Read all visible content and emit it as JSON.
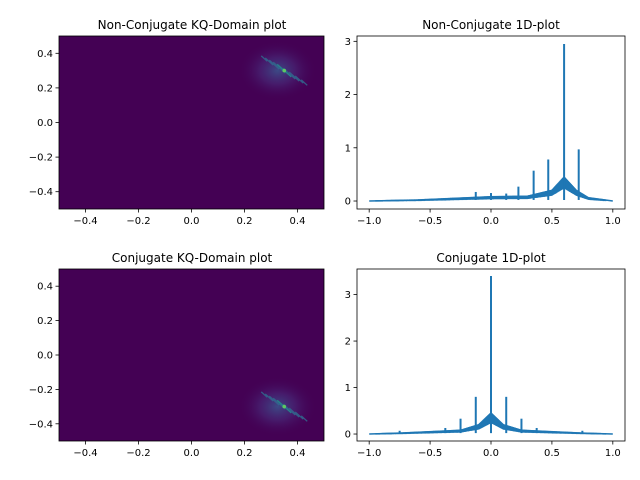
{
  "figure": {
    "background": "#ffffff"
  },
  "chart_data": [
    {
      "id": "nc-kq",
      "type": "heatmap",
      "title": "Non-Conjugate KQ-Domain plot",
      "xlim": [
        -0.5,
        0.5
      ],
      "ylim": [
        -0.5,
        0.5
      ],
      "xticks": [
        -0.4,
        -0.2,
        0.0,
        0.2,
        0.4
      ],
      "yticks": [
        -0.4,
        -0.2,
        0.0,
        0.2,
        0.4
      ],
      "xtick_labels": [
        "−0.4",
        "−0.2",
        "0.0",
        "0.2",
        "0.4"
      ],
      "ytick_labels": [
        "−0.4",
        "−0.2",
        "0.0",
        "0.2",
        "0.4"
      ],
      "colormap": "viridis",
      "background_color": "#440154",
      "hotspot": {
        "x_range": [
          0.2,
          0.45
        ],
        "y_range": [
          0.15,
          0.45
        ],
        "peak": [
          0.35,
          0.3
        ]
      },
      "grid": false
    },
    {
      "id": "nc-1d",
      "type": "line",
      "title": "Non-Conjugate 1D-plot",
      "xlim": [
        -1.1,
        1.1
      ],
      "ylim": [
        -0.15,
        3.1
      ],
      "xticks": [
        -1.0,
        -0.5,
        0.0,
        0.5,
        1.0
      ],
      "yticks": [
        0,
        1,
        2,
        3
      ],
      "xtick_labels": [
        "−1.0",
        "−0.5",
        "0.0",
        "0.5",
        "1.0"
      ],
      "ytick_labels": [
        "0",
        "1",
        "2",
        "3"
      ],
      "color": "#1f77b4",
      "baseline": {
        "x": [
          -1.0,
          -0.6,
          -0.3,
          0.0,
          0.3,
          0.5,
          0.6,
          0.7,
          0.8,
          1.0
        ],
        "y": [
          0.0,
          0.02,
          0.05,
          0.08,
          0.09,
          0.2,
          0.45,
          0.2,
          0.06,
          0.0
        ]
      },
      "spikes": [
        {
          "x": -0.125,
          "y": 0.17
        },
        {
          "x": 0.0,
          "y": 0.15
        },
        {
          "x": 0.125,
          "y": 0.14
        },
        {
          "x": 0.225,
          "y": 0.27
        },
        {
          "x": 0.35,
          "y": 0.57
        },
        {
          "x": 0.47,
          "y": 0.78
        },
        {
          "x": 0.6,
          "y": 2.95
        },
        {
          "x": 0.72,
          "y": 0.97
        },
        {
          "x": 0.85,
          "y": 0.04
        }
      ],
      "grid": false
    },
    {
      "id": "c-kq",
      "type": "heatmap",
      "title": "Conjugate KQ-Domain plot",
      "xlim": [
        -0.5,
        0.5
      ],
      "ylim": [
        -0.5,
        0.5
      ],
      "xticks": [
        -0.4,
        -0.2,
        0.0,
        0.2,
        0.4
      ],
      "yticks": [
        -0.4,
        -0.2,
        0.0,
        0.2,
        0.4
      ],
      "xtick_labels": [
        "−0.4",
        "−0.2",
        "0.0",
        "0.2",
        "0.4"
      ],
      "ytick_labels": [
        "−0.4",
        "−0.2",
        "0.0",
        "0.2",
        "0.4"
      ],
      "colormap": "viridis",
      "background_color": "#440154",
      "hotspot": {
        "x_range": [
          0.2,
          0.45
        ],
        "y_range": [
          -0.45,
          -0.15
        ],
        "peak": [
          0.35,
          -0.3
        ]
      },
      "grid": false
    },
    {
      "id": "c-1d",
      "type": "line",
      "title": "Conjugate 1D-plot",
      "xlim": [
        -1.1,
        1.1
      ],
      "ylim": [
        -0.15,
        3.55
      ],
      "xticks": [
        -1.0,
        -0.5,
        0.0,
        0.5,
        1.0
      ],
      "yticks": [
        0,
        1,
        2,
        3
      ],
      "xtick_labels": [
        "−1.0",
        "−0.5",
        "0.0",
        "0.5",
        "1.0"
      ],
      "ytick_labels": [
        "0",
        "1",
        "2",
        "3"
      ],
      "color": "#1f77b4",
      "baseline": {
        "x": [
          -1.0,
          -0.75,
          -0.5,
          -0.25,
          -0.1,
          0.0,
          0.1,
          0.25,
          0.5,
          0.75,
          1.0
        ],
        "y": [
          0.0,
          0.02,
          0.05,
          0.08,
          0.2,
          0.45,
          0.2,
          0.08,
          0.05,
          0.02,
          0.0
        ]
      },
      "spikes": [
        {
          "x": -0.75,
          "y": 0.07
        },
        {
          "x": -0.375,
          "y": 0.13
        },
        {
          "x": -0.25,
          "y": 0.33
        },
        {
          "x": -0.125,
          "y": 0.8
        },
        {
          "x": 0.0,
          "y": 3.4
        },
        {
          "x": 0.125,
          "y": 0.8
        },
        {
          "x": 0.25,
          "y": 0.33
        },
        {
          "x": 0.375,
          "y": 0.13
        },
        {
          "x": 0.75,
          "y": 0.07
        }
      ],
      "grid": false
    }
  ]
}
